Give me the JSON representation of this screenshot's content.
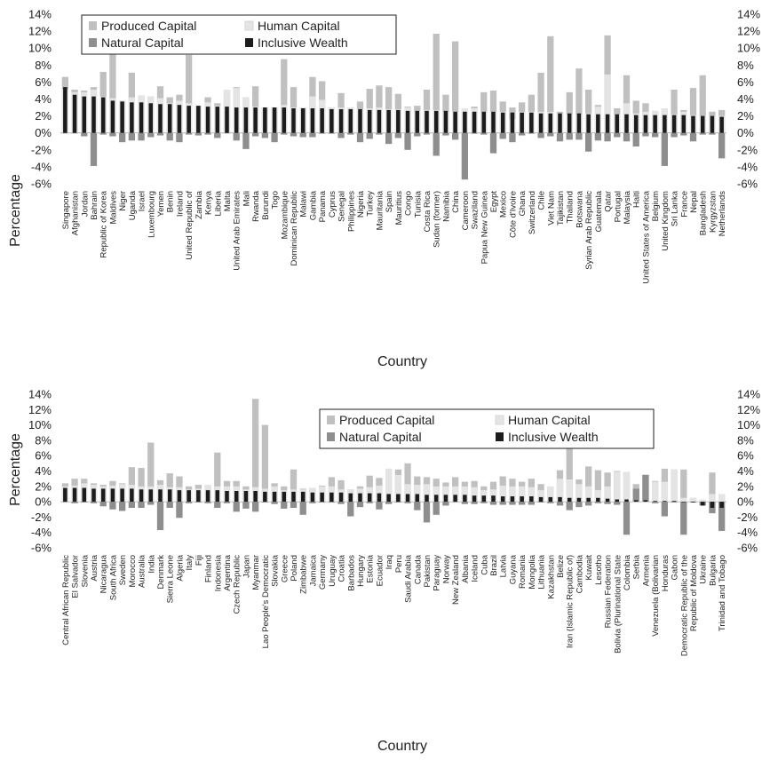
{
  "colors": {
    "produced": "#c0c0c0",
    "human": "#e4e4e4",
    "natural": "#8e8e8e",
    "inclusive": "#1c1c1c"
  },
  "chart_data": [
    {
      "type": "bar",
      "ylabel": "Percentage",
      "xlabel": "Country",
      "ylim": [
        -6,
        14
      ],
      "yticks": [
        "-6%",
        "-4%",
        "-2%",
        "0%",
        "2%",
        "4%",
        "6%",
        "8%",
        "10%",
        "12%",
        "14%"
      ],
      "legend_position": "top-left",
      "series_names": [
        "Produced Capital",
        "Human Capital",
        "Natural Capital",
        "Inclusive Wealth"
      ],
      "categories": [
        "Singapore",
        "Afghanistan",
        "Jordan",
        "Bahrain",
        "Republic of Korea",
        "Maldives",
        "Niger",
        "Uganda",
        "Israel",
        "Luxembourg",
        "Yemen",
        "Benin",
        "Ireland",
        "United Republic of",
        "Zambia",
        "Kenya",
        "Liberia",
        "Malta",
        "United Arab Emirates",
        "Mali",
        "Rwanda",
        "Burundi",
        "Togo",
        "Mozambique",
        "Dominican Republic",
        "Malawi",
        "Gambia",
        "Panama",
        "Cyprus",
        "Senegal",
        "Philippines",
        "Nigeria",
        "Turkey",
        "Mauritania",
        "Spain",
        "Mauritius",
        "Congo",
        "Tunisia",
        "Costa Rica",
        "Sudan (former)",
        "Namibia",
        "China",
        "Cameroon",
        "Swaziland",
        "Papua New Guinea",
        "Egypt",
        "Mexico",
        "Côte d'Ivoire",
        "Ghana",
        "Switzerland",
        "Chile",
        "Viet Nam",
        "Tajikistan",
        "Thailand",
        "Botswana",
        "Syrian Arab Republic",
        "Guatemala",
        "Qatar",
        "Portugal",
        "Malaysia",
        "Haiti",
        "United States of America",
        "Belgium",
        "United Kingdom",
        "Sri Lanka",
        "France",
        "Nepal",
        "Bangladesh",
        "Kyrgyzstan",
        "Netherlands"
      ],
      "series": [
        {
          "key": "produced",
          "values": [
            6.6,
            5.1,
            5.0,
            5.4,
            7.2,
            9.5,
            3.8,
            7.1,
            4.4,
            4.3,
            5.5,
            4.2,
            4.5,
            9.2,
            3.2,
            4.2,
            3.5,
            5.1,
            5.4,
            4.2,
            5.5,
            3.0,
            3.0,
            8.7,
            5.4,
            3.0,
            6.6,
            6.1,
            3.0,
            4.7,
            3.0,
            3.7,
            5.2,
            5.6,
            5.4,
            4.6,
            3.1,
            3.2,
            5.1,
            11.7,
            4.5,
            10.8,
            2.9,
            3.1,
            4.8,
            5.0,
            3.7,
            3.0,
            3.6,
            4.5,
            7.1,
            11.4,
            2.5,
            4.8,
            7.6,
            5.1,
            3.3,
            11.5,
            2.9,
            6.8,
            3.8,
            3.5,
            2.6,
            2.9,
            5.1,
            2.7,
            5.3,
            6.8,
            2.5,
            2.7
          ]
        },
        {
          "key": "human",
          "values": [
            5.1,
            4.8,
            4.8,
            5.1,
            4.3,
            4.1,
            3.8,
            4.2,
            4.4,
            4.3,
            4.1,
            3.5,
            3.8,
            3.5,
            3.2,
            3.6,
            3.2,
            5.1,
            5.3,
            4.2,
            3.1,
            3.0,
            3.0,
            3.3,
            3.0,
            3.0,
            4.3,
            3.9,
            3.0,
            3.0,
            3.0,
            2.8,
            2.9,
            3.0,
            2.8,
            2.8,
            3.0,
            2.6,
            2.7,
            2.7,
            2.5,
            2.5,
            2.9,
            2.9,
            2.5,
            2.5,
            2.5,
            1.6,
            2.5,
            2.5,
            2.5,
            2.5,
            2.3,
            2.2,
            2.2,
            2.3,
            3.1,
            6.9,
            2.2,
            3.5,
            2.3,
            2.5,
            2.6,
            2.9,
            2.2,
            2.5,
            2.1,
            2.0,
            2.0,
            2.0
          ]
        },
        {
          "key": "natural",
          "values": [
            0.0,
            0.0,
            -0.4,
            -3.9,
            -0.2,
            -0.4,
            -1.1,
            -0.9,
            -0.9,
            -0.5,
            -0.3,
            -0.9,
            -1.1,
            -0.2,
            -0.3,
            -0.2,
            -0.6,
            0.0,
            -0.9,
            -1.9,
            -0.4,
            -0.6,
            -1.1,
            -0.2,
            -0.4,
            -0.5,
            -0.5,
            -0.1,
            -0.1,
            -0.6,
            -0.2,
            -1.1,
            -0.7,
            -0.2,
            -1.3,
            -0.6,
            -2.0,
            -0.4,
            -0.2,
            -2.7,
            -0.3,
            -0.8,
            -5.5,
            -0.1,
            -0.2,
            -2.4,
            -0.7,
            -1.1,
            -0.3,
            -0.1,
            -0.6,
            -0.4,
            -1.0,
            -0.8,
            -0.8,
            -2.2,
            -0.9,
            -1.0,
            -0.5,
            -1.0,
            -1.6,
            -0.4,
            -0.5,
            -3.9,
            -0.5,
            -0.3,
            -1.0,
            -0.2,
            -0.2,
            -3.0
          ]
        },
        {
          "key": "inclusive",
          "values": [
            5.4,
            4.5,
            4.3,
            4.3,
            4.2,
            3.8,
            3.7,
            3.6,
            3.6,
            3.5,
            3.4,
            3.4,
            3.3,
            3.2,
            3.2,
            3.1,
            3.1,
            3.1,
            3.0,
            3.0,
            3.0,
            3.0,
            3.0,
            3.0,
            2.9,
            2.9,
            2.9,
            2.9,
            2.8,
            2.8,
            2.8,
            2.8,
            2.7,
            2.7,
            2.7,
            2.7,
            2.6,
            2.6,
            2.6,
            2.6,
            2.6,
            2.5,
            2.5,
            2.5,
            2.5,
            2.5,
            2.4,
            2.4,
            2.4,
            2.4,
            2.3,
            2.3,
            2.3,
            2.3,
            2.3,
            2.2,
            2.2,
            2.2,
            2.2,
            2.2,
            2.1,
            2.1,
            2.1,
            2.1,
            2.1,
            2.1,
            2.0,
            2.0,
            2.0,
            1.9
          ]
        }
      ]
    },
    {
      "type": "bar",
      "ylabel": "Percentage",
      "xlabel": "Country",
      "ylim": [
        -6,
        14
      ],
      "yticks": [
        "-6%",
        "-4%",
        "-2%",
        "0%",
        "2%",
        "4%",
        "6%",
        "8%",
        "10%",
        "12%",
        "14%"
      ],
      "legend_position": "top-right",
      "series_names": [
        "Produced Capital",
        "Human Capital",
        "Natural Capital",
        "Inclusive Wealth"
      ],
      "categories": [
        "Central African Republic",
        "El Salvador",
        "Slovenia",
        "Austria",
        "Nicaragua",
        "South Africa",
        "Sweden",
        "Morocco",
        "Australia",
        "India",
        "Denmark",
        "Sierra Leone",
        "Algeria",
        "Italy",
        "Fiji",
        "Finland",
        "Indonesia",
        "Argentina",
        "Czech Republic",
        "Japan",
        "Myanmar",
        "Lao People's Democratic",
        "Slovakia",
        "Greece",
        "Poland",
        "Zimbabwe",
        "Jamaica",
        "Germany",
        "Uruguay",
        "Croatia",
        "Barbados",
        "Hungary",
        "Estonia",
        "Ecuador",
        "Iraq",
        "Peru",
        "Saudi Arabia",
        "Canada",
        "Pakistan",
        "Paraguay",
        "Norway",
        "New Zealand",
        "Albania",
        "Iceland",
        "Cuba",
        "Brazil",
        "Latvia",
        "Guyana",
        "Romania",
        "Mongolia",
        "Lithuania",
        "Kazakhstan",
        "Belize",
        "Iran (Islamic Republic of)",
        "Cambodia",
        "Kuwait",
        "Lesotho",
        "Russian Federation",
        "Bolivia (Plurinational State",
        "Colombia",
        "Serbia",
        "Armenia",
        "Venezuela (Bolivarian",
        "Honduras",
        "Gabon",
        "Democratic Republic of the",
        "Republic of Moldova",
        "Ukraine",
        "Bulgaria",
        "Trinidad and Tobago"
      ],
      "series": [
        {
          "key": "produced",
          "values": [
            2.4,
            3.0,
            3.0,
            2.4,
            2.2,
            2.7,
            2.4,
            4.5,
            4.4,
            7.7,
            2.8,
            3.7,
            3.3,
            2.0,
            2.2,
            2.1,
            6.4,
            2.7,
            2.7,
            2.0,
            13.4,
            10.0,
            2.4,
            2.0,
            4.2,
            1.7,
            1.8,
            2.1,
            3.2,
            2.8,
            1.6,
            2.0,
            3.4,
            3.1,
            4.3,
            4.2,
            5.0,
            3.3,
            3.2,
            3.0,
            2.5,
            3.2,
            2.6,
            2.7,
            2.0,
            2.6,
            3.3,
            3.0,
            2.6,
            3.0,
            2.3,
            1.8,
            4.1,
            7.5,
            2.9,
            4.6,
            4.1,
            3.8,
            4.0,
            3.8,
            2.3,
            3.5,
            2.7,
            4.3,
            4.2,
            4.2,
            0.5,
            0.1,
            3.8,
            0.9
          ]
        },
        {
          "key": "human",
          "values": [
            2.0,
            2.1,
            2.4,
            2.2,
            2.0,
            2.1,
            2.3,
            2.2,
            2.0,
            2.0,
            2.2,
            1.9,
            1.9,
            1.6,
            1.7,
            2.2,
            2.0,
            2.0,
            2.0,
            1.6,
            1.9,
            1.7,
            2.0,
            1.5,
            1.6,
            1.6,
            1.8,
            2.0,
            2.0,
            1.6,
            1.6,
            1.7,
            1.9,
            2.1,
            4.3,
            3.5,
            2.3,
            2.2,
            2.3,
            2.0,
            2.0,
            2.0,
            2.0,
            1.9,
            1.5,
            1.6,
            2.1,
            2.0,
            2.0,
            1.9,
            1.5,
            2.0,
            3.0,
            2.9,
            2.3,
            2.0,
            1.5,
            2.0,
            3.9,
            3.9,
            1.2,
            0.5,
            2.6,
            2.6,
            4.2,
            0.5,
            0.5,
            0.3,
            1.0,
            1.0
          ]
        },
        {
          "key": "natural",
          "values": [
            0.0,
            -0.2,
            -0.1,
            -0.2,
            -0.6,
            -1.0,
            -1.2,
            -0.8,
            -0.8,
            -0.4,
            -3.7,
            -0.8,
            -2.1,
            -0.2,
            -0.1,
            -0.2,
            -0.8,
            -0.2,
            -1.3,
            -0.9,
            -1.3,
            -0.1,
            -0.3,
            -0.9,
            -0.8,
            -1.7,
            -0.2,
            -0.1,
            -0.1,
            -0.3,
            -1.9,
            -0.7,
            -0.2,
            -1.0,
            -0.3,
            -0.1,
            -0.2,
            -1.1,
            -2.7,
            -1.7,
            -0.5,
            0.0,
            -0.3,
            -0.3,
            -0.2,
            -0.4,
            -0.4,
            -0.4,
            -0.4,
            -0.4,
            -0.1,
            -0.2,
            -0.5,
            -1.1,
            -0.7,
            -0.5,
            -0.2,
            -0.3,
            -0.4,
            -4.3,
            1.7,
            3.5,
            -0.2,
            -1.9,
            -0.1,
            -4.3,
            -0.1,
            -0.5,
            -1.5,
            -3.8
          ]
        },
        {
          "key": "inclusive",
          "values": [
            1.8,
            1.8,
            1.8,
            1.7,
            1.7,
            1.7,
            1.7,
            1.7,
            1.6,
            1.6,
            1.6,
            1.6,
            1.5,
            1.5,
            1.5,
            1.5,
            1.5,
            1.4,
            1.4,
            1.4,
            1.4,
            1.3,
            1.3,
            1.3,
            1.3,
            1.3,
            1.2,
            1.2,
            1.2,
            1.2,
            1.1,
            1.1,
            1.1,
            1.1,
            1.0,
            1.0,
            1.0,
            1.0,
            0.9,
            0.9,
            0.9,
            0.9,
            0.9,
            0.8,
            0.8,
            0.8,
            0.7,
            0.7,
            0.7,
            0.7,
            0.6,
            0.6,
            0.6,
            0.5,
            0.5,
            0.5,
            0.5,
            0.4,
            0.3,
            0.3,
            0.2,
            0.2,
            0.1,
            0.1,
            0.1,
            0.0,
            -0.1,
            -0.5,
            -0.8,
            -0.8
          ]
        }
      ]
    }
  ]
}
